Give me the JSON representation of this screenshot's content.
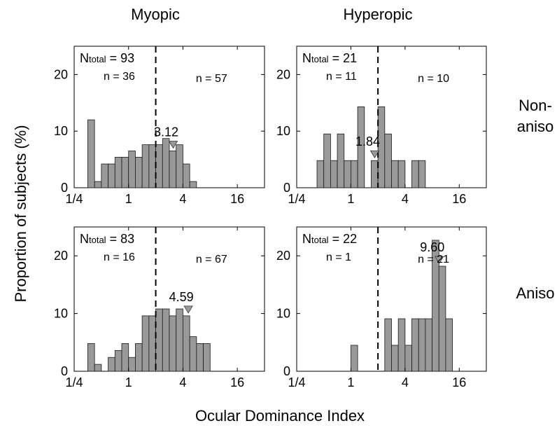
{
  "column_titles": [
    "Myopic",
    "Hyperopic"
  ],
  "row_titles": [
    [
      "Non-",
      "aniso"
    ],
    "Aniso"
  ],
  "ylabel": "Proportion of subjects (%)",
  "xlabel": "Ocular Dominance Index",
  "chart_data": [
    {
      "type": "bar",
      "row": 0,
      "col": 0,
      "ntotal": "93",
      "n_left": "n = 36",
      "n_right": "n = 57",
      "median_label": "3.12",
      "median": 3.12,
      "ylim": [
        0,
        25
      ],
      "yticks": [
        0,
        10,
        20
      ],
      "xlim": [
        0.25,
        32
      ],
      "xticks": [
        0.25,
        1,
        4,
        16
      ],
      "xtick_labels": [
        "1/4",
        "1",
        "4",
        "16"
      ],
      "divider": 2,
      "bin_log2_start": -1.5,
      "bin_log2_width": 0.25,
      "values": [
        12.0,
        1.1,
        4.2,
        4.2,
        5.4,
        5.4,
        6.5,
        5.4,
        7.6,
        7.6,
        7.6,
        8.7,
        6.5,
        7.6,
        4.2,
        1.1
      ]
    },
    {
      "type": "bar",
      "row": 0,
      "col": 1,
      "ntotal": "21",
      "n_left": "n = 11",
      "n_right": "n = 10",
      "median_label": "1.84",
      "median": 1.84,
      "ylim": [
        0,
        25
      ],
      "yticks": [
        0,
        10,
        20
      ],
      "xlim": [
        0.25,
        32
      ],
      "xticks": [
        0.25,
        1,
        4,
        16
      ],
      "xtick_labels": [
        "1/4",
        "1",
        "4",
        "16"
      ],
      "divider": 2,
      "bin_log2_start": -1.25,
      "bin_log2_width": 0.25,
      "values": [
        4.8,
        9.5,
        4.8,
        9.5,
        4.8,
        4.8,
        14.3,
        0,
        4.8,
        14.3,
        9.5,
        4.8,
        4.8,
        0,
        4.8,
        4.8
      ]
    },
    {
      "type": "bar",
      "row": 1,
      "col": 0,
      "ntotal": "83",
      "n_left": "n = 16",
      "n_right": "n = 67",
      "median_label": "4.59",
      "median": 4.59,
      "ylim": [
        0,
        25
      ],
      "yticks": [
        0,
        10,
        20
      ],
      "xlim": [
        0.25,
        32
      ],
      "xticks": [
        0.25,
        1,
        4,
        16
      ],
      "xtick_labels": [
        "1/4",
        "1",
        "4",
        "16"
      ],
      "divider": 2,
      "bin_log2_start": -1.5,
      "bin_log2_width": 0.25,
      "values": [
        4.8,
        1.2,
        0,
        2.4,
        3.6,
        4.8,
        2.4,
        4.8,
        9.6,
        9.6,
        10.8,
        10.8,
        9.6,
        10.8,
        9.6,
        6.0,
        4.8,
        4.8
      ]
    },
    {
      "type": "bar",
      "row": 1,
      "col": 1,
      "ntotal": "22",
      "n_left": "n = 1",
      "n_right": "n = 21",
      "median_label": "9.60",
      "median": 9.6,
      "ylim": [
        0,
        25
      ],
      "yticks": [
        0,
        10,
        20
      ],
      "xlim": [
        0.25,
        32
      ],
      "xticks": [
        0.25,
        1,
        4,
        16
      ],
      "xtick_labels": [
        "1/4",
        "1",
        "4",
        "16"
      ],
      "divider": 2,
      "bin_log2_start": 0,
      "bin_log2_width": 0.25,
      "values": [
        4.5,
        0,
        0,
        0,
        0,
        9.1,
        4.5,
        9.1,
        4.5,
        9.1,
        9.1,
        9.1,
        22.7,
        18.2,
        9.1
      ]
    }
  ],
  "colors": {
    "bar_fill": "#999999",
    "bar_edge": "#1a1a1a",
    "marker": "#999999"
  }
}
